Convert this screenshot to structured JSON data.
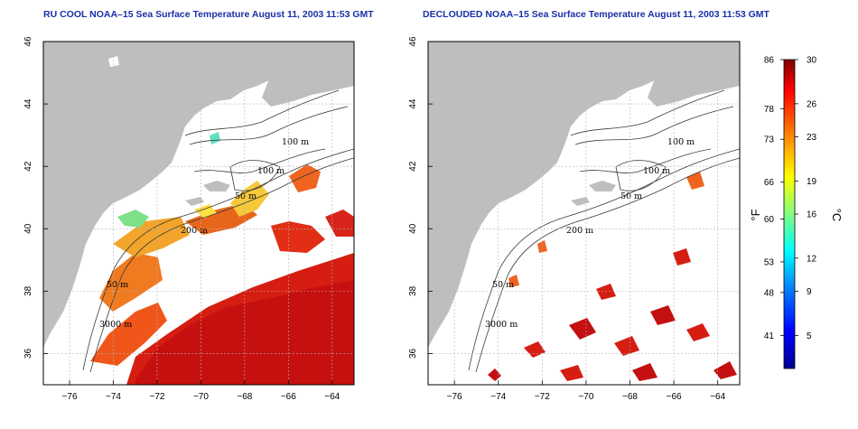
{
  "maps": [
    {
      "title": "RU COOL NOAA–15 Sea Surface Temperature August 11, 2003 11:53 GMT",
      "contour_labels": [
        "100 m",
        "100 m",
        "50 m",
        "200 m",
        "50 m",
        "3000 m"
      ]
    },
    {
      "title": "DECLOUDED NOAA–15 Sea Surface Temperature August 11, 2003 11:53 GMT",
      "contour_labels": [
        "100 m",
        "100 m",
        "50 m",
        "200 m",
        "50 m",
        "3000 m"
      ]
    }
  ],
  "axes": {
    "lon_ticks": [
      "−76",
      "−74",
      "−72",
      "−70",
      "−68",
      "−66",
      "−64"
    ],
    "lat_ticks": [
      "36",
      "38",
      "40",
      "42",
      "44",
      "46"
    ],
    "lon_range": [
      -77.2,
      -63
    ],
    "lat_range": [
      35,
      46
    ]
  },
  "colorbar": {
    "fahrenheit_unit": "°F",
    "celsius_unit": "°C",
    "fahrenheit_ticks": [
      "86",
      "78",
      "73",
      "66",
      "60",
      "53",
      "48",
      "41"
    ],
    "celsius_ticks": [
      "30",
      "26",
      "23",
      "19",
      "16",
      "12",
      "9",
      "5"
    ],
    "range_c": [
      2,
      30
    ],
    "colors": [
      "#00008f",
      "#0000ff",
      "#0080ff",
      "#00ffff",
      "#80ff80",
      "#ffff00",
      "#ff8000",
      "#ff0000",
      "#800000"
    ]
  },
  "colors": {
    "land": "#bebebe",
    "ocean": "#ffffff",
    "grid": "#b4b4b4",
    "contour": "#3a3a3a",
    "title": "#1a2fa8"
  }
}
